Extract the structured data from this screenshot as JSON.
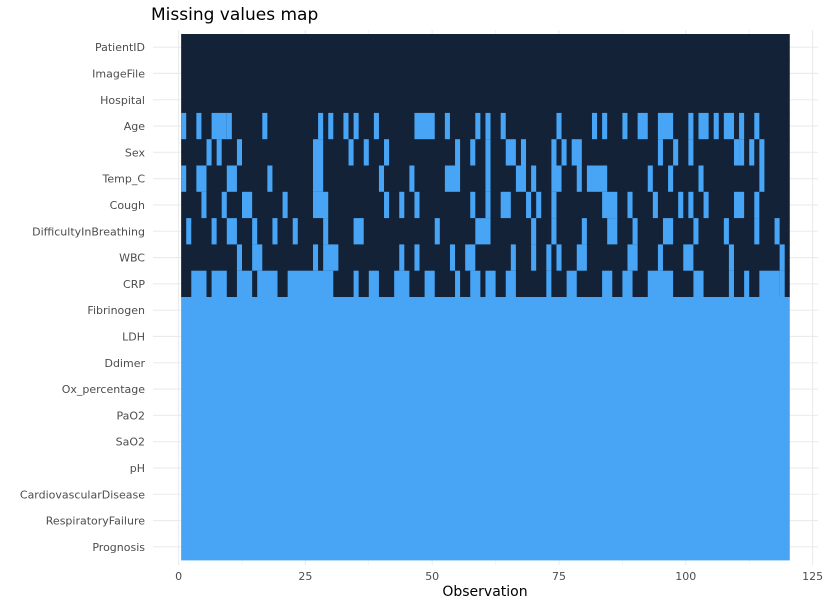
{
  "chart_data": {
    "type": "heatmap",
    "title": "Missing values map",
    "xlabel": "Observation",
    "ylabel": "",
    "xlim": [
      0,
      125
    ],
    "x_ticks": [
      0,
      25,
      50,
      75,
      100,
      125
    ],
    "n_observations": 120,
    "legend": "none",
    "grid": true,
    "colors": {
      "present": "#132236",
      "missing": "#48a4f4",
      "grid": "#ebebeb",
      "axis_text": "#4d4d4d",
      "title": "#000000"
    },
    "variables": [
      "PatientID",
      "ImageFile",
      "Hospital",
      "Age",
      "Sex",
      "Temp_C",
      "Cough",
      "DifficultyInBreathing",
      "WBC",
      "CRP",
      "Fibrinogen",
      "LDH",
      "Ddimer",
      "Ox_percentage",
      "PaO2",
      "SaO2",
      "pH",
      "CardiovascularDisease",
      "RespiratoryFailure",
      "Prognosis"
    ],
    "missing_runs": {
      "PatientID": [],
      "ImageFile": [],
      "Hospital": [],
      "Age": [
        [
          1,
          1
        ],
        [
          4,
          4
        ],
        [
          7,
          9
        ],
        [
          10,
          10
        ],
        [
          17,
          17
        ],
        [
          28,
          28
        ],
        [
          30,
          30
        ],
        [
          33,
          33
        ],
        [
          35,
          35
        ],
        [
          39,
          39
        ],
        [
          47,
          50
        ],
        [
          53,
          53
        ],
        [
          59,
          59
        ],
        [
          61,
          61
        ],
        [
          64,
          64
        ],
        [
          75,
          75
        ],
        [
          82,
          82
        ],
        [
          84,
          84
        ],
        [
          88,
          88
        ],
        [
          91,
          92
        ],
        [
          95,
          97
        ],
        [
          101,
          101
        ],
        [
          103,
          104
        ],
        [
          106,
          106
        ],
        [
          108,
          109
        ],
        [
          111,
          111
        ],
        [
          114,
          114
        ]
      ],
      "Sex": [
        [
          6,
          6
        ],
        [
          8,
          8
        ],
        [
          12,
          12
        ],
        [
          27,
          28
        ],
        [
          34,
          34
        ],
        [
          37,
          37
        ],
        [
          41,
          41
        ],
        [
          55,
          55
        ],
        [
          58,
          58
        ],
        [
          61,
          61
        ],
        [
          65,
          66
        ],
        [
          68,
          68
        ],
        [
          74,
          74
        ],
        [
          76,
          76
        ],
        [
          78,
          79
        ],
        [
          95,
          95
        ],
        [
          98,
          98
        ],
        [
          101,
          101
        ],
        [
          110,
          110
        ],
        [
          111,
          111
        ],
        [
          113,
          113
        ],
        [
          115,
          115
        ]
      ],
      "Temp_C": [
        [
          1,
          1
        ],
        [
          4,
          5
        ],
        [
          10,
          11
        ],
        [
          18,
          18
        ],
        [
          27,
          28
        ],
        [
          40,
          40
        ],
        [
          46,
          46
        ],
        [
          53,
          55
        ],
        [
          61,
          61
        ],
        [
          67,
          68
        ],
        [
          70,
          70
        ],
        [
          74,
          75
        ],
        [
          79,
          79
        ],
        [
          81,
          84
        ],
        [
          93,
          93
        ],
        [
          97,
          97
        ],
        [
          103,
          103
        ],
        [
          115,
          115
        ]
      ],
      "Cough": [
        [
          5,
          5
        ],
        [
          9,
          9
        ],
        [
          13,
          14
        ],
        [
          21,
          21
        ],
        [
          27,
          29
        ],
        [
          41,
          41
        ],
        [
          44,
          44
        ],
        [
          47,
          47
        ],
        [
          58,
          58
        ],
        [
          61,
          61
        ],
        [
          64,
          65
        ],
        [
          69,
          69
        ],
        [
          71,
          71
        ],
        [
          74,
          74
        ],
        [
          84,
          86
        ],
        [
          89,
          89
        ],
        [
          94,
          94
        ],
        [
          99,
          99
        ],
        [
          101,
          101
        ],
        [
          104,
          104
        ],
        [
          110,
          111
        ],
        [
          114,
          114
        ]
      ],
      "DifficultyInBreathing": [
        [
          2,
          2
        ],
        [
          7,
          7
        ],
        [
          10,
          11
        ],
        [
          15,
          15
        ],
        [
          19,
          19
        ],
        [
          23,
          23
        ],
        [
          29,
          29
        ],
        [
          35,
          36
        ],
        [
          51,
          51
        ],
        [
          59,
          61
        ],
        [
          70,
          70
        ],
        [
          74,
          74
        ],
        [
          80,
          80
        ],
        [
          85,
          86
        ],
        [
          90,
          90
        ],
        [
          96,
          97
        ],
        [
          102,
          102
        ],
        [
          108,
          108
        ],
        [
          114,
          114
        ],
        [
          118,
          118
        ]
      ],
      "WBC": [
        [
          12,
          12
        ],
        [
          15,
          16
        ],
        [
          27,
          27
        ],
        [
          29,
          31
        ],
        [
          44,
          44
        ],
        [
          47,
          47
        ],
        [
          54,
          54
        ],
        [
          57,
          58
        ],
        [
          66,
          66
        ],
        [
          70,
          70
        ],
        [
          73,
          73
        ],
        [
          75,
          75
        ],
        [
          79,
          80
        ],
        [
          89,
          90
        ],
        [
          95,
          95
        ],
        [
          100,
          101
        ],
        [
          109,
          109
        ],
        [
          119,
          119
        ]
      ],
      "CRP": [
        [
          3,
          5
        ],
        [
          7,
          9
        ],
        [
          12,
          14
        ],
        [
          16,
          19
        ],
        [
          22,
          30
        ],
        [
          35,
          35
        ],
        [
          38,
          39
        ],
        [
          43,
          45
        ],
        [
          49,
          50
        ],
        [
          55,
          55
        ],
        [
          58,
          59
        ],
        [
          61,
          62
        ],
        [
          65,
          66
        ],
        [
          73,
          73
        ],
        [
          77,
          78
        ],
        [
          84,
          85
        ],
        [
          88,
          89
        ],
        [
          93,
          97
        ],
        [
          102,
          103
        ],
        [
          109,
          109
        ],
        [
          112,
          112
        ],
        [
          115,
          118
        ],
        [
          119,
          119
        ]
      ]
    }
  }
}
